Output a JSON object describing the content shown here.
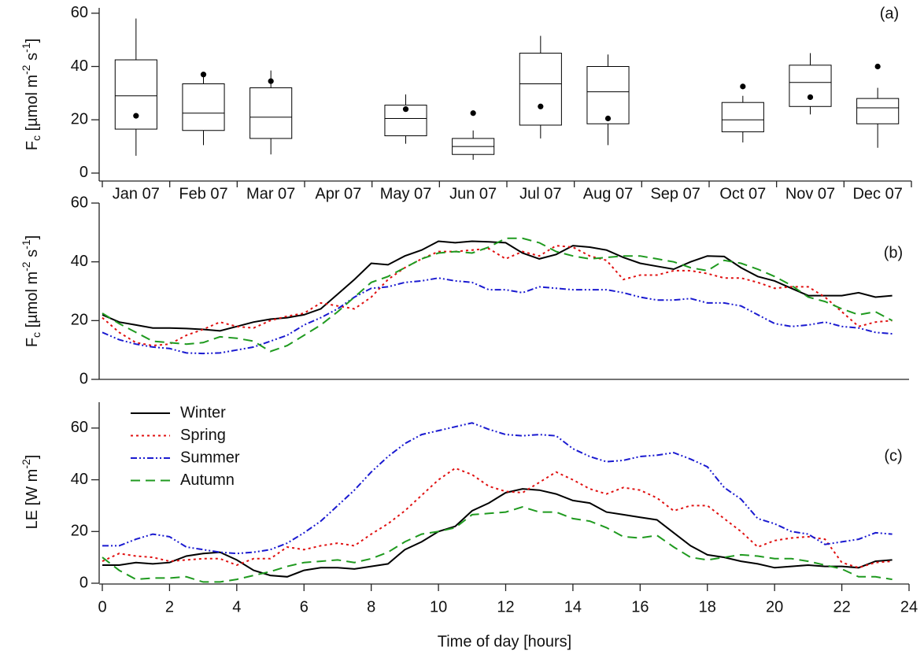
{
  "chart_data": [
    {
      "type": "box",
      "annotation": "(a)",
      "ylabel": [
        "F",
        "c",
        " [µmol m",
        "-2",
        " s",
        "-1",
        "]"
      ],
      "categories": [
        "Jan 07",
        "Feb 07",
        "Mar 07",
        "Apr 07",
        "May 07",
        "Jun 07",
        "Jul 07",
        "Aug 07",
        "Sep 07",
        "Oct 07",
        "Nov 07",
        "Dec 07"
      ],
      "whisker_low": [
        6.5,
        10.5,
        7,
        null,
        11,
        5,
        13,
        10.5,
        null,
        11.5,
        22,
        9.5
      ],
      "q1": [
        16.5,
        16,
        13,
        null,
        14,
        7,
        18,
        18.5,
        null,
        15.5,
        25,
        18.5
      ],
      "median": [
        29,
        22.5,
        21,
        null,
        20.5,
        10,
        33.5,
        30.5,
        null,
        20,
        34,
        24.5
      ],
      "q3": [
        42.5,
        33.5,
        32,
        null,
        25.5,
        13,
        45,
        40,
        null,
        26.5,
        40.5,
        28
      ],
      "whisker_high": [
        58,
        36,
        38.5,
        null,
        29.5,
        16,
        51.5,
        44.5,
        null,
        29,
        45,
        32
      ],
      "mean": [
        21.5,
        37,
        34.5,
        null,
        24,
        22.5,
        25,
        20.5,
        null,
        32.5,
        28.5,
        40
      ],
      "color": "#000000",
      "ylim": [
        -1.5,
        62
      ],
      "yticks": [
        0,
        20,
        40,
        60
      ]
    },
    {
      "type": "line",
      "annotation": "(b)",
      "ylabel": [
        "F",
        "c",
        " [µmol m",
        "-2",
        " s",
        "-1",
        "]"
      ],
      "x": [
        0,
        0.5,
        1,
        1.5,
        2,
        2.5,
        3,
        3.5,
        4,
        4.5,
        5,
        5.5,
        6,
        6.5,
        7,
        7.5,
        8,
        8.5,
        9,
        9.5,
        10,
        10.5,
        11,
        11.5,
        12,
        12.5,
        13,
        13.5,
        14,
        14.5,
        15,
        15.5,
        16,
        16.5,
        17,
        17.5,
        18,
        18.5,
        19,
        19.5,
        20,
        20.5,
        21,
        21.5,
        22,
        22.5,
        23,
        23.5
      ],
      "series": [
        {
          "name": "Winter",
          "color": "#000000",
          "dash": "solid",
          "values": [
            22,
            19.5,
            18.5,
            17.5,
            17.5,
            17.3,
            17,
            16.5,
            18,
            19.5,
            20.5,
            21,
            22,
            24,
            29,
            34,
            39.5,
            39,
            42,
            44,
            47,
            46.5,
            47,
            46.8,
            46.5,
            43,
            41,
            42.5,
            45.5,
            45,
            44,
            41.5,
            39.5,
            38.5,
            37.5,
            40,
            42,
            41.8,
            38,
            35,
            33.5,
            31,
            28.5,
            28.5,
            28.5,
            29.5,
            28,
            28.5
          ]
        },
        {
          "name": "Spring",
          "color": "#e01010",
          "dash": "dotted",
          "values": [
            21,
            16,
            12.5,
            11.5,
            12,
            15,
            17,
            19.5,
            18,
            17.5,
            20,
            21.5,
            22.5,
            26,
            25,
            24,
            28,
            34,
            38,
            41,
            43.5,
            43.5,
            44,
            44.5,
            41,
            43.5,
            42,
            45.5,
            45,
            42,
            40.5,
            34,
            35.5,
            35.5,
            37,
            37,
            36,
            34.5,
            34.5,
            33,
            31,
            31.5,
            31.5,
            28,
            23,
            18,
            19.5,
            20
          ]
        },
        {
          "name": "Summer",
          "color": "#1a1ad0",
          "dash": "dashdotdot",
          "values": [
            16,
            13.5,
            12,
            11,
            10.5,
            9,
            8.8,
            9,
            10,
            11,
            13,
            15,
            18.5,
            21,
            24,
            28,
            31,
            31.5,
            33,
            33.5,
            34.5,
            33.5,
            33,
            30.5,
            30.5,
            29.5,
            31.5,
            31,
            30.5,
            30.5,
            30.5,
            29.5,
            28,
            27,
            27,
            27.5,
            26,
            26,
            25,
            22,
            19,
            18,
            18.5,
            19.5,
            18,
            17.5,
            16,
            15.5
          ]
        },
        {
          "name": "Autumn",
          "color": "#1f9a1f",
          "dash": "dashed",
          "values": [
            22.5,
            19,
            16,
            13,
            12.5,
            12,
            12.5,
            14.5,
            14,
            13,
            9.5,
            11.5,
            15,
            18.5,
            23,
            28,
            33,
            35,
            38,
            41,
            43,
            43.5,
            43,
            45,
            48,
            48,
            46.5,
            43.5,
            42,
            41,
            41.5,
            42,
            42,
            41,
            40,
            38,
            37,
            40.5,
            39.5,
            37.5,
            35,
            32,
            28,
            26.5,
            24,
            22,
            23,
            20
          ]
        }
      ],
      "xlim": [
        0,
        24
      ],
      "ylim": [
        0,
        60
      ],
      "yticks": [
        0,
        20,
        40,
        60
      ]
    },
    {
      "type": "line",
      "annotation": "(c)",
      "ylabel": [
        "LE [W m",
        "-2",
        "]"
      ],
      "xlabel": "Time of day [hours]",
      "legend": "upper left",
      "x": [
        0,
        0.5,
        1,
        1.5,
        2,
        2.5,
        3,
        3.5,
        4,
        4.5,
        5,
        5.5,
        6,
        6.5,
        7,
        7.5,
        8,
        8.5,
        9,
        9.5,
        10,
        10.5,
        11,
        11.5,
        12,
        12.5,
        13,
        13.5,
        14,
        14.5,
        15,
        15.5,
        16,
        16.5,
        17,
        17.5,
        18,
        18.5,
        19,
        19.5,
        20,
        20.5,
        21,
        21.5,
        22,
        22.5,
        23,
        23.5
      ],
      "series": [
        {
          "name": "Winter",
          "color": "#000000",
          "dash": "solid",
          "values": [
            7,
            7,
            8,
            7.5,
            8,
            10.5,
            11.5,
            12,
            9,
            5,
            3,
            2.5,
            5,
            6,
            6,
            5.5,
            6.5,
            7.5,
            13,
            16,
            20,
            22,
            28,
            31,
            35,
            36.5,
            36,
            34.5,
            32,
            31,
            27.5,
            26.5,
            25.5,
            24.5,
            19.5,
            14.5,
            11,
            10,
            8.5,
            7.5,
            6,
            6.5,
            7,
            6.5,
            6.5,
            6,
            8.5,
            9
          ]
        },
        {
          "name": "Spring",
          "color": "#e01010",
          "dash": "dotted",
          "values": [
            8.5,
            11.5,
            10.5,
            10,
            8.5,
            9,
            9.5,
            9.5,
            7,
            9.5,
            9.5,
            14,
            13,
            14.5,
            15.5,
            14.5,
            19,
            23,
            28,
            34,
            40,
            44.5,
            42,
            37.5,
            35.5,
            35,
            39,
            43,
            40,
            36.5,
            34.5,
            37,
            36,
            33,
            28,
            30,
            30,
            25,
            20,
            14,
            16.5,
            17.5,
            18,
            17,
            8,
            6,
            8,
            8.5
          ]
        },
        {
          "name": "Summer",
          "color": "#1a1ad0",
          "dash": "dashdotdot",
          "values": [
            14.5,
            14.5,
            17,
            19,
            18,
            14,
            13,
            12,
            11.5,
            12,
            13,
            15.5,
            19.5,
            24,
            30,
            36,
            43,
            49,
            54,
            57.5,
            59,
            60.5,
            62,
            59.5,
            57.5,
            57,
            57.5,
            57,
            52,
            49,
            47,
            47.5,
            49,
            49.5,
            50.5,
            48,
            45,
            37,
            32.5,
            25,
            23,
            20,
            19,
            15,
            16,
            17,
            19.5,
            19
          ]
        },
        {
          "name": "Autumn",
          "color": "#1f9a1f",
          "dash": "dashed",
          "values": [
            10,
            5,
            1.5,
            2,
            2,
            2.5,
            0.5,
            0.5,
            1.5,
            3,
            4.5,
            6.5,
            8,
            8.5,
            9,
            8,
            9.5,
            12,
            16,
            19,
            20,
            21.5,
            26.5,
            27,
            27.5,
            29.5,
            27.5,
            27.5,
            25,
            24,
            21.5,
            18,
            17.5,
            18.5,
            14,
            10,
            9,
            10,
            11,
            10.5,
            9.5,
            9.5,
            8.5,
            7,
            5.5,
            2.5,
            2.5,
            1.5
          ]
        }
      ],
      "xlim": [
        0,
        24
      ],
      "xticks": [
        0,
        2,
        4,
        6,
        8,
        10,
        12,
        14,
        16,
        18,
        20,
        22,
        24
      ],
      "ylim": [
        0,
        70
      ],
      "yticks": [
        0,
        20,
        40,
        60
      ]
    }
  ]
}
